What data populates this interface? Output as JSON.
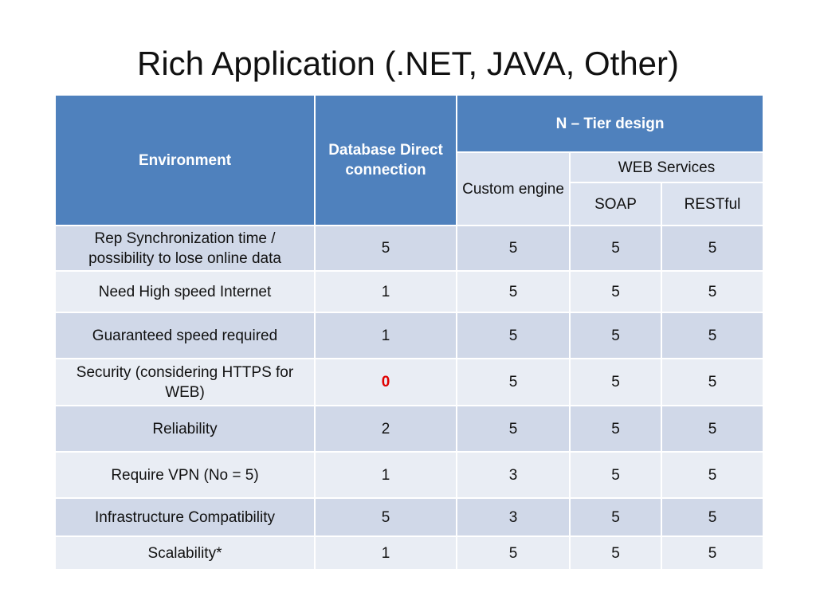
{
  "slide": {
    "title": "Rich Application (.NET, JAVA, Other)"
  },
  "table": {
    "header": {
      "environment": "Environment",
      "database_direct": "Database Direct connection",
      "n_tier": "N – Tier design",
      "custom_engine": "Custom engine",
      "web_services": "WEB Services",
      "soap": "SOAP",
      "restful": "RESTful"
    },
    "rows": [
      {
        "label": "Rep Synchronization time / possibility to lose online data",
        "db": "5",
        "custom": "5",
        "soap": "5",
        "restful": "5"
      },
      {
        "label": "Need High speed Internet",
        "db": "1",
        "custom": "5",
        "soap": "5",
        "restful": "5"
      },
      {
        "label": "Guaranteed speed required",
        "db": "1",
        "custom": "5",
        "soap": "5",
        "restful": "5"
      },
      {
        "label": "Security (considering HTTPS for WEB)",
        "db": "0",
        "custom": "5",
        "soap": "5",
        "restful": "5"
      },
      {
        "label": "Reliability",
        "db": "2",
        "custom": "5",
        "soap": "5",
        "restful": "5"
      },
      {
        "label": "Require VPN (No = 5)",
        "db": "1",
        "custom": "3",
        "soap": "5",
        "restful": "5"
      },
      {
        "label": "Infrastructure Compatibility",
        "db": "5",
        "custom": "3",
        "soap": "5",
        "restful": "5"
      },
      {
        "label": "Scalability*",
        "db": "1",
        "custom": "5",
        "soap": "5",
        "restful": "5"
      }
    ]
  },
  "colors": {
    "header_blue": "#4f81bd",
    "row_dark": "#d0d8e8",
    "row_light": "#e9edf4",
    "highlight_red": "#e00000"
  }
}
